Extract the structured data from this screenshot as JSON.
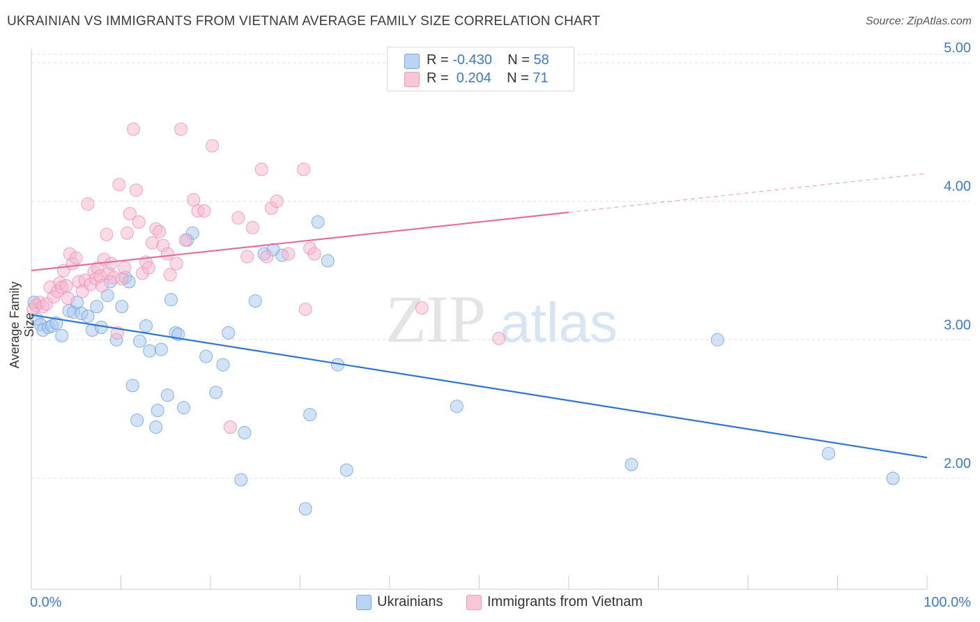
{
  "title": "UKRAINIAN VS IMMIGRANTS FROM VIETNAM AVERAGE FAMILY SIZE CORRELATION CHART",
  "source": "Source: ZipAtlas.com",
  "watermark": {
    "zip": "ZIP",
    "atlas": "atlas"
  },
  "legend": {
    "rows": [
      {
        "r_label": "R =",
        "r_value": "-0.430",
        "n_label": "N =",
        "n_value": "58"
      },
      {
        "r_label": "R =",
        "r_value": " 0.204",
        "n_label": "N =",
        "n_value": "71"
      }
    ]
  },
  "bottom_legend": [
    "Ukrainians",
    "Immigrants from Vietnam"
  ],
  "colors": {
    "blue_fill": "#a8c8f0",
    "blue_stroke": "#6a9fe0",
    "blue_line": "#2f74d0",
    "pink_fill": "#f7b6cd",
    "pink_stroke": "#ec8fb0",
    "pink_line": "#e0709a",
    "tick_label": "#3a78d4",
    "grid": "#dddddd"
  },
  "chart_data": {
    "type": "scatter",
    "title": "UKRAINIAN VS IMMIGRANTS FROM VIETNAM AVERAGE FAMILY SIZE CORRELATION CHART",
    "xlabel": "",
    "ylabel": "Average Family Size",
    "xlim": [
      0,
      100
    ],
    "ylim": [
      1.2,
      5.1
    ],
    "x_tick_labels": [
      "0.0%",
      "100.0%"
    ],
    "y_ticks": [
      2.0,
      3.0,
      4.0,
      5.0
    ],
    "y_tick_labels": [
      "2.00",
      "3.00",
      "4.00",
      "5.00"
    ],
    "grid": true,
    "series": [
      {
        "name": "Ukrainians",
        "color": "#a8c8f0",
        "trend": {
          "x": [
            0,
            100
          ],
          "y": [
            3.18,
            2.15
          ],
          "dashed_from": null
        },
        "points": [
          [
            0.3,
            3.27
          ],
          [
            0.6,
            3.15
          ],
          [
            1.0,
            3.11
          ],
          [
            1.3,
            3.07
          ],
          [
            1.9,
            3.09
          ],
          [
            2.3,
            3.1
          ],
          [
            2.8,
            3.12
          ],
          [
            3.4,
            3.03
          ],
          [
            4.2,
            3.21
          ],
          [
            4.7,
            3.2
          ],
          [
            5.1,
            3.27
          ],
          [
            5.6,
            3.19
          ],
          [
            6.3,
            3.17
          ],
          [
            6.8,
            3.07
          ],
          [
            7.3,
            3.24
          ],
          [
            7.8,
            3.09
          ],
          [
            8.5,
            3.32
          ],
          [
            8.8,
            3.42
          ],
          [
            9.5,
            3.0
          ],
          [
            10.1,
            3.24
          ],
          [
            10.5,
            3.45
          ],
          [
            10.9,
            3.42
          ],
          [
            11.3,
            2.67
          ],
          [
            11.8,
            2.42
          ],
          [
            12.1,
            2.99
          ],
          [
            12.8,
            3.1
          ],
          [
            13.2,
            2.92
          ],
          [
            13.9,
            2.37
          ],
          [
            14.1,
            2.49
          ],
          [
            14.5,
            2.93
          ],
          [
            15.2,
            2.6
          ],
          [
            15.6,
            3.29
          ],
          [
            16.1,
            3.05
          ],
          [
            16.4,
            3.04
          ],
          [
            17.0,
            2.51
          ],
          [
            17.4,
            3.72
          ],
          [
            18.0,
            3.77
          ],
          [
            19.5,
            2.88
          ],
          [
            20.6,
            2.62
          ],
          [
            21.4,
            2.82
          ],
          [
            22.0,
            3.05
          ],
          [
            23.4,
            1.99
          ],
          [
            23.8,
            2.33
          ],
          [
            25.0,
            3.28
          ],
          [
            26.0,
            3.62
          ],
          [
            27.0,
            3.65
          ],
          [
            28.0,
            3.61
          ],
          [
            30.6,
            1.78
          ],
          [
            31.1,
            2.46
          ],
          [
            32.0,
            3.85
          ],
          [
            33.1,
            3.57
          ],
          [
            34.2,
            2.82
          ],
          [
            35.2,
            2.06
          ],
          [
            47.5,
            2.52
          ],
          [
            67.0,
            2.1
          ],
          [
            76.6,
            3.0
          ],
          [
            89.0,
            2.18
          ],
          [
            96.2,
            2.0
          ]
        ]
      },
      {
        "name": "Immigrants from Vietnam",
        "color": "#f7b6cd",
        "trend": {
          "x": [
            0,
            100
          ],
          "y": [
            3.5,
            4.2
          ],
          "dashed_from": 60
        },
        "points": [
          [
            0.2,
            3.22
          ],
          [
            0.5,
            3.25
          ],
          [
            0.9,
            3.27
          ],
          [
            1.3,
            3.24
          ],
          [
            1.7,
            3.26
          ],
          [
            2.1,
            3.38
          ],
          [
            2.5,
            3.31
          ],
          [
            2.9,
            3.35
          ],
          [
            3.2,
            3.41
          ],
          [
            3.4,
            3.38
          ],
          [
            3.6,
            3.5
          ],
          [
            3.9,
            3.39
          ],
          [
            4.1,
            3.3
          ],
          [
            4.3,
            3.62
          ],
          [
            4.6,
            3.55
          ],
          [
            5.0,
            3.59
          ],
          [
            5.3,
            3.42
          ],
          [
            5.7,
            3.35
          ],
          [
            6.0,
            3.43
          ],
          [
            6.3,
            3.98
          ],
          [
            6.6,
            3.4
          ],
          [
            7.0,
            3.49
          ],
          [
            7.2,
            3.44
          ],
          [
            7.4,
            3.52
          ],
          [
            7.7,
            3.46
          ],
          [
            7.9,
            3.39
          ],
          [
            8.1,
            3.58
          ],
          [
            8.4,
            3.76
          ],
          [
            8.6,
            3.48
          ],
          [
            8.9,
            3.55
          ],
          [
            9.2,
            3.45
          ],
          [
            9.6,
            3.05
          ],
          [
            9.8,
            4.12
          ],
          [
            10.1,
            3.44
          ],
          [
            10.4,
            3.52
          ],
          [
            10.7,
            3.77
          ],
          [
            11.0,
            3.91
          ],
          [
            11.4,
            4.52
          ],
          [
            11.7,
            4.08
          ],
          [
            12.0,
            3.85
          ],
          [
            12.4,
            3.48
          ],
          [
            12.8,
            3.56
          ],
          [
            13.1,
            3.52
          ],
          [
            13.5,
            3.7
          ],
          [
            13.9,
            3.8
          ],
          [
            14.3,
            3.78
          ],
          [
            14.7,
            3.68
          ],
          [
            15.2,
            3.62
          ],
          [
            15.5,
            3.47
          ],
          [
            16.2,
            3.55
          ],
          [
            16.7,
            4.52
          ],
          [
            17.2,
            3.72
          ],
          [
            18.1,
            4.01
          ],
          [
            18.6,
            3.93
          ],
          [
            19.3,
            3.93
          ],
          [
            20.2,
            4.4
          ],
          [
            22.2,
            2.37
          ],
          [
            23.1,
            3.88
          ],
          [
            24.1,
            3.6
          ],
          [
            24.7,
            3.81
          ],
          [
            25.7,
            4.23
          ],
          [
            26.3,
            3.6
          ],
          [
            26.8,
            3.95
          ],
          [
            27.4,
            4.0
          ],
          [
            28.7,
            3.62
          ],
          [
            30.4,
            4.23
          ],
          [
            30.6,
            3.22
          ],
          [
            31.1,
            3.66
          ],
          [
            31.6,
            3.62
          ],
          [
            43.6,
            3.23
          ],
          [
            52.2,
            3.01
          ]
        ]
      }
    ]
  }
}
